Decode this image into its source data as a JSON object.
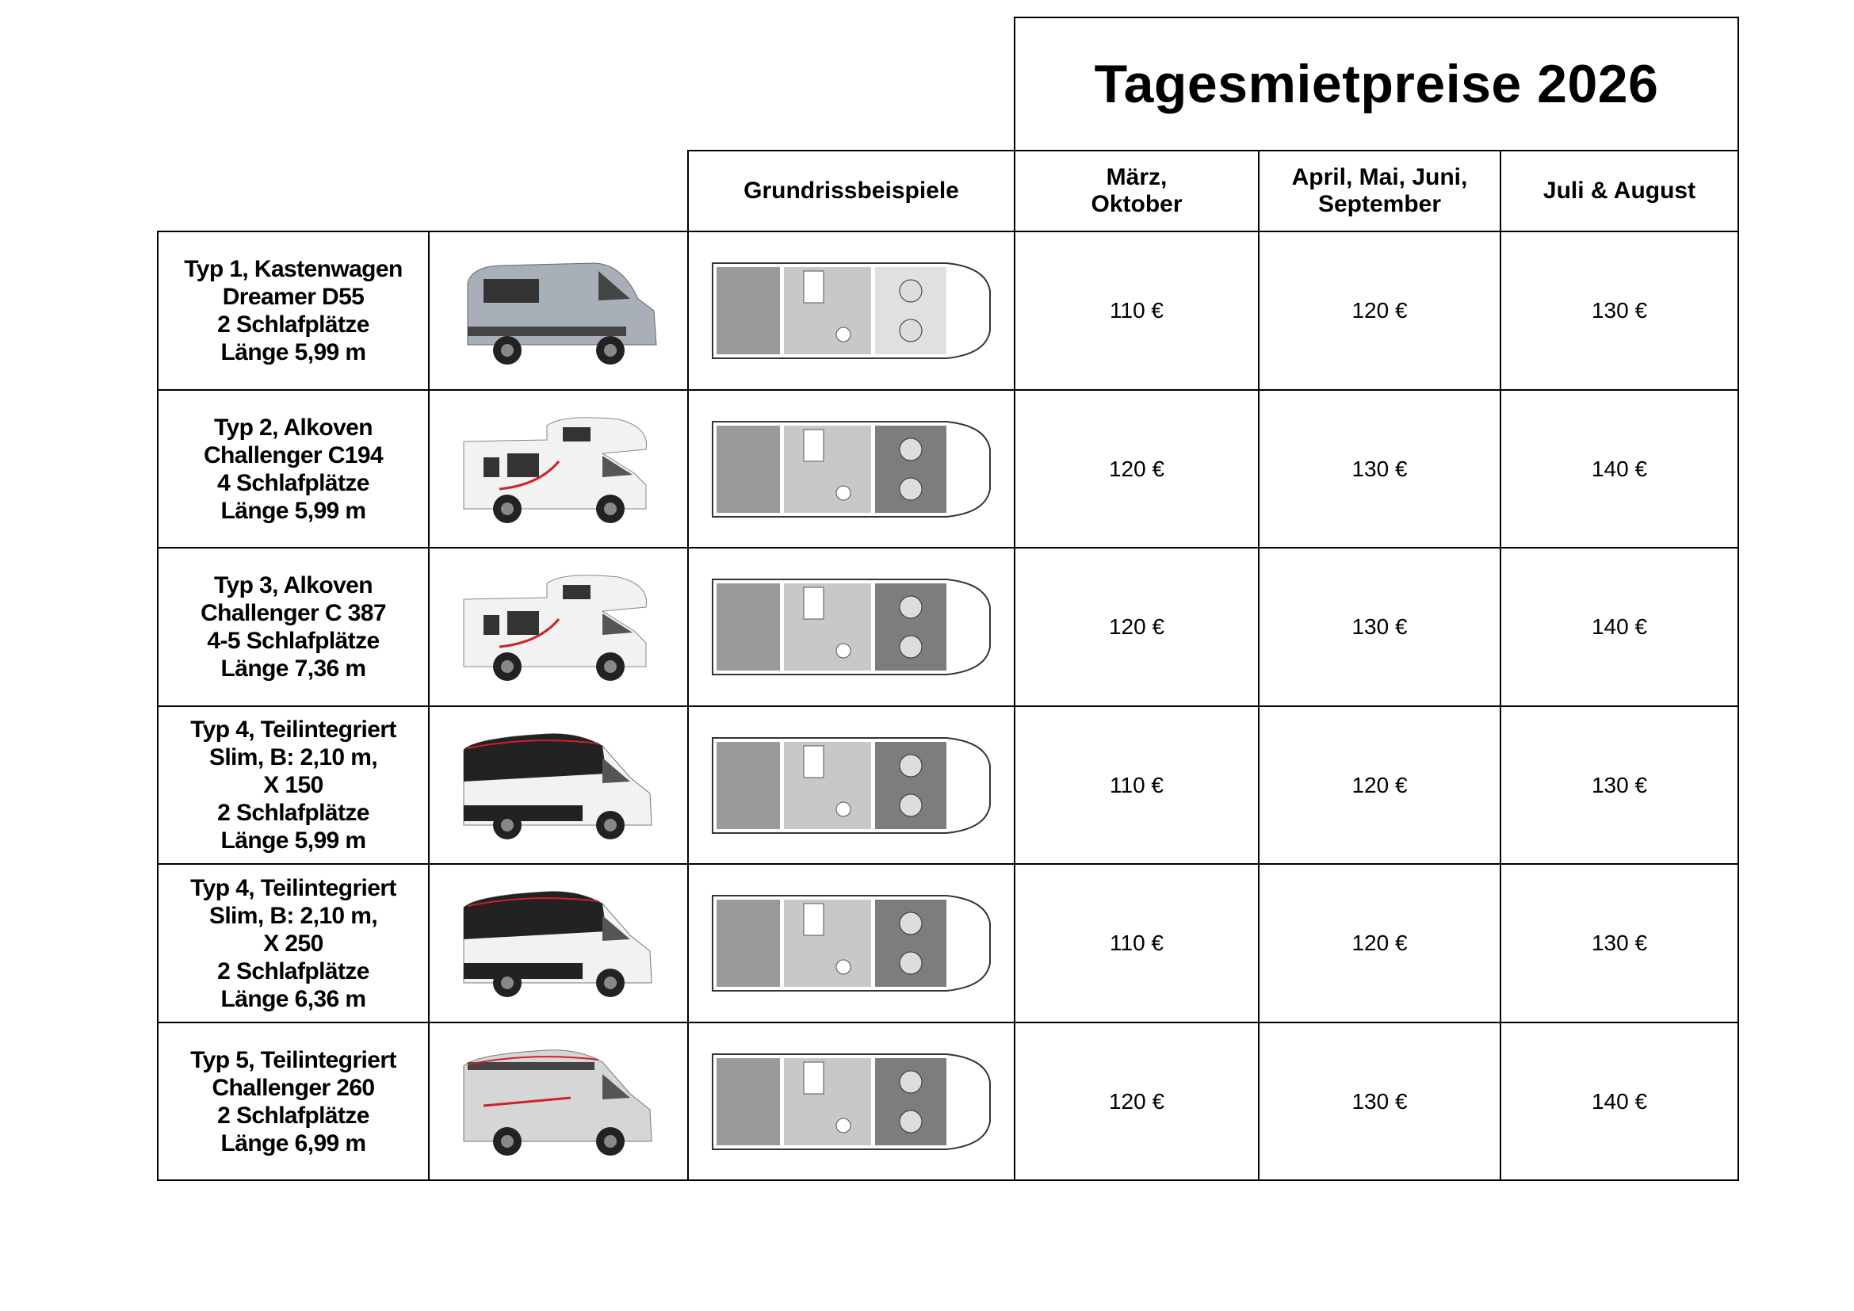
{
  "title": "Tagesmietpreise 2026",
  "headers": {
    "floorplan": "Grundrissbeispiele",
    "seasons": [
      "März,\nOktober",
      "April, Mai, Juni,\nSeptember",
      "Juli & August"
    ]
  },
  "colors": {
    "border": "#000000",
    "accent_red": "#d0202a"
  },
  "rows": [
    {
      "desc": "Typ 1, Kastenwagen\nDreamer D55\n2 Schlafplätze\nLänge 5,99 m",
      "vehicle": "van-silver",
      "prices": [
        "110 €",
        "120 €",
        "130 €"
      ]
    },
    {
      "desc": "Typ 2, Alkoven\nChallenger C194\n4 Schlafplätze\nLänge 5,99 m",
      "vehicle": "alcove-white",
      "prices": [
        "120 €",
        "130 €",
        "140 €"
      ]
    },
    {
      "desc": "Typ 3, Alkoven\nChallenger C 387\n4-5 Schlafplätze\nLänge 7,36 m",
      "vehicle": "alcove-white",
      "prices": [
        "120 €",
        "130 €",
        "140 €"
      ]
    },
    {
      "desc": "Typ 4, Teilintegriert\nSlim, B: 2,10 m,\nX 150\n2 Schlafplätze\nLänge 5,99 m",
      "vehicle": "semi-black",
      "prices": [
        "110 €",
        "120 €",
        "130 €"
      ]
    },
    {
      "desc": "Typ 4, Teilintegriert\nSlim, B: 2,10 m,\nX 250\n2 Schlafplätze\nLänge 6,36 m",
      "vehicle": "semi-black",
      "prices": [
        "110 €",
        "120 €",
        "130 €"
      ]
    },
    {
      "desc": "Typ 5, Teilintegriert\nChallenger 260\n2 Schlafplätze\nLänge 6,99 m",
      "vehicle": "semi-silver",
      "prices": [
        "120 €",
        "130 €",
        "140 €"
      ]
    }
  ]
}
